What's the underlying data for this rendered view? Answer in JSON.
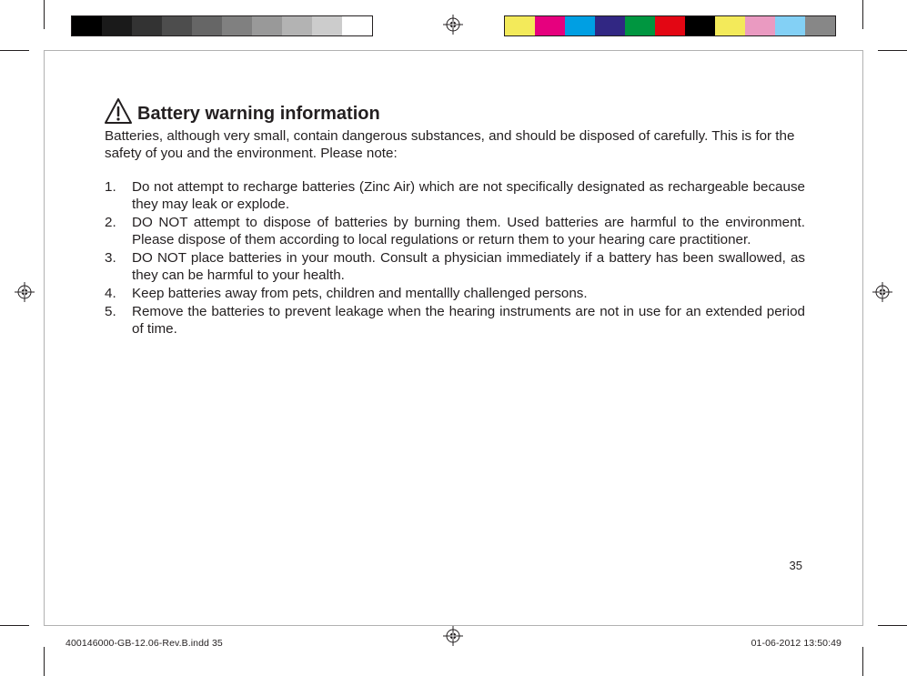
{
  "grayscale_bar": [
    "#000000",
    "#1a1a1a",
    "#333333",
    "#4d4d4d",
    "#666666",
    "#808080",
    "#999999",
    "#b3b3b3",
    "#cccccc",
    "#ffffff"
  ],
  "color_bar": [
    "#f3ea5a",
    "#e6007e",
    "#009fe3",
    "#312783",
    "#009640",
    "#e30613",
    "#000000",
    "#f3ea5a",
    "#ea9ac1",
    "#83d0f5",
    "#878787"
  ],
  "heading": "Battery warning information",
  "intro": "Batteries, although very small, contain dangerous substances, and should be disposed of carefully. This is for the safety of you and the environment. Please note:",
  "warnings": [
    "Do not attempt to recharge batteries (Zinc Air) which are not specifically designated as rechargeable because they may leak or explode.",
    "DO NOT attempt to dispose of batteries by burning them. Used batteries are harmful to the environment. Please dispose of them according to local regulations or return them to your hearing care practitioner.",
    "DO NOT place batteries in your mouth. Consult a physician immediately if a battery has been swallowed, as they can be harmful to your health.",
    "Keep batteries away from pets, children and mentallly challenged persons.",
    "Remove the batteries to prevent leakage when the hearing instruments are not in use for an extended period of time."
  ],
  "page_number": "35",
  "slug": {
    "file": "400146000-GB-12.06-Rev.B.indd   35",
    "datetime": "01-06-2012   13:50:49"
  }
}
